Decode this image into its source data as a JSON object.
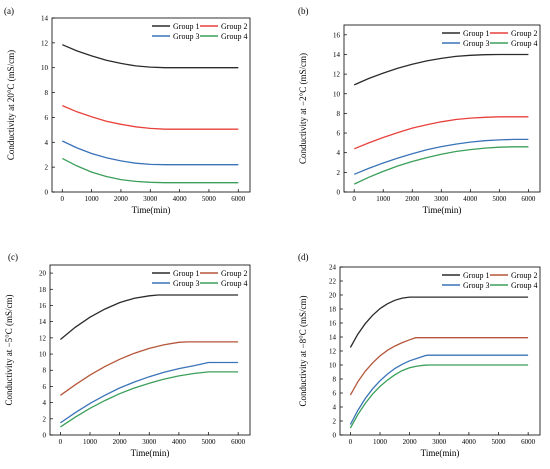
{
  "chart_data": [
    {
      "panel": "(a)",
      "type": "line",
      "xlabel": "Time(min)",
      "ylabel": "Conductivity at 20°C (mS/cm)",
      "xlim": [
        -350,
        6400
      ],
      "ylim": [
        0,
        14
      ],
      "xticks": [
        0,
        1000,
        2000,
        3000,
        4000,
        5000,
        6000
      ],
      "yticks": [
        0,
        2,
        4,
        6,
        8,
        10,
        12,
        14
      ],
      "legend_position": "top-right",
      "legend_columns": 2,
      "grid": false,
      "series": [
        {
          "name": "Group 1",
          "color": "#2b2b2b",
          "x": [
            0,
            500,
            1000,
            1500,
            2000,
            2500,
            3000,
            3500,
            3600,
            4000,
            5000,
            6000
          ],
          "values": [
            11.85,
            11.35,
            10.95,
            10.6,
            10.35,
            10.15,
            10.05,
            10.0,
            10.0,
            10.0,
            10.0,
            10.0
          ]
        },
        {
          "name": "Group 2",
          "color": "#e8413c",
          "x": [
            0,
            500,
            1000,
            1500,
            2000,
            2500,
            3000,
            3500,
            3600,
            4000,
            5000,
            6000
          ],
          "values": [
            6.95,
            6.45,
            6.05,
            5.7,
            5.45,
            5.25,
            5.12,
            5.05,
            5.05,
            5.05,
            5.05,
            5.05
          ]
        },
        {
          "name": "Group 3",
          "color": "#3a73b8",
          "x": [
            0,
            500,
            1000,
            1500,
            2000,
            2500,
            3000,
            3500,
            3600,
            4000,
            5000,
            6000
          ],
          "values": [
            4.1,
            3.55,
            3.1,
            2.75,
            2.5,
            2.32,
            2.22,
            2.2,
            2.2,
            2.2,
            2.2,
            2.2
          ]
        },
        {
          "name": "Group 4",
          "color": "#3b9f5a",
          "x": [
            0,
            500,
            1000,
            1500,
            2000,
            2500,
            3000,
            3500,
            3600,
            4000,
            5000,
            6000
          ],
          "values": [
            2.7,
            2.1,
            1.6,
            1.25,
            1.0,
            0.85,
            0.78,
            0.75,
            0.75,
            0.75,
            0.75,
            0.75
          ]
        }
      ]
    },
    {
      "panel": "(b)",
      "type": "line",
      "xlabel": "Time(min)",
      "ylabel": "Conductivity at −2°C (mS/cm)",
      "xlim": [
        -350,
        6400
      ],
      "ylim": [
        0,
        17
      ],
      "xticks": [
        0,
        1000,
        2000,
        3000,
        4000,
        5000,
        6000
      ],
      "yticks": [
        0,
        2,
        4,
        6,
        8,
        10,
        12,
        14,
        16
      ],
      "legend_position": "top-right",
      "legend_columns": 2,
      "grid": false,
      "series": [
        {
          "name": "Group 1",
          "color": "#2b2b2b",
          "x": [
            0,
            500,
            1000,
            1500,
            2000,
            2500,
            3000,
            3500,
            4000,
            4500,
            5000,
            5500,
            6000
          ],
          "values": [
            10.9,
            11.55,
            12.1,
            12.6,
            13.0,
            13.35,
            13.6,
            13.8,
            13.92,
            13.98,
            14.0,
            14.0,
            14.0
          ]
        },
        {
          "name": "Group 2",
          "color": "#e8413c",
          "x": [
            0,
            500,
            1000,
            1500,
            2000,
            2500,
            3000,
            3500,
            4000,
            4500,
            5000,
            5500,
            6000
          ],
          "values": [
            4.4,
            5.0,
            5.55,
            6.05,
            6.5,
            6.85,
            7.15,
            7.38,
            7.52,
            7.6,
            7.65,
            7.65,
            7.65
          ]
        },
        {
          "name": "Group 3",
          "color": "#3a73b8",
          "x": [
            0,
            500,
            1000,
            1500,
            2000,
            2500,
            3000,
            3500,
            4000,
            4500,
            5000,
            5500,
            6000
          ],
          "values": [
            1.8,
            2.4,
            2.95,
            3.45,
            3.9,
            4.3,
            4.62,
            4.88,
            5.08,
            5.22,
            5.3,
            5.35,
            5.35
          ]
        },
        {
          "name": "Group 4",
          "color": "#3b9f5a",
          "x": [
            0,
            500,
            1000,
            1500,
            2000,
            2500,
            3000,
            3500,
            4000,
            4500,
            5000,
            5500,
            6000
          ],
          "values": [
            0.8,
            1.5,
            2.1,
            2.65,
            3.1,
            3.5,
            3.85,
            4.12,
            4.32,
            4.47,
            4.56,
            4.6,
            4.6
          ]
        }
      ]
    },
    {
      "panel": "(c)",
      "type": "line",
      "xlabel": "Time(min)",
      "ylabel": "Conductivity at −5°C (mS/cm)",
      "xlim": [
        -350,
        6400
      ],
      "ylim": [
        0,
        21
      ],
      "xticks": [
        0,
        1000,
        2000,
        3000,
        4000,
        5000,
        6000
      ],
      "yticks": [
        0,
        2,
        4,
        6,
        8,
        10,
        12,
        14,
        16,
        18,
        20
      ],
      "legend_position": "top-right",
      "legend_columns": 2,
      "grid": false,
      "series": [
        {
          "name": "Group 1",
          "color": "#2b2b2b",
          "x": [
            0,
            500,
            1000,
            1500,
            2000,
            2500,
            3000,
            3300,
            3500,
            4000,
            5000,
            6000
          ],
          "values": [
            11.8,
            13.3,
            14.55,
            15.55,
            16.35,
            16.9,
            17.2,
            17.3,
            17.3,
            17.3,
            17.3,
            17.3
          ]
        },
        {
          "name": "Group 2",
          "color": "#b5563a",
          "x": [
            0,
            500,
            1000,
            1500,
            2000,
            2500,
            3000,
            3500,
            4000,
            4300,
            5000,
            6000
          ],
          "values": [
            4.9,
            6.2,
            7.4,
            8.45,
            9.35,
            10.1,
            10.7,
            11.15,
            11.45,
            11.5,
            11.5,
            11.5
          ]
        },
        {
          "name": "Group 3",
          "color": "#3a73b8",
          "x": [
            0,
            500,
            1000,
            1500,
            2000,
            2500,
            3000,
            3500,
            4000,
            4500,
            5000,
            6000
          ],
          "values": [
            1.5,
            2.75,
            3.9,
            4.9,
            5.8,
            6.55,
            7.2,
            7.75,
            8.2,
            8.55,
            8.95,
            8.95
          ]
        },
        {
          "name": "Group 4",
          "color": "#3b9f5a",
          "x": [
            0,
            500,
            1000,
            1500,
            2000,
            2500,
            3000,
            3500,
            4000,
            4500,
            5000,
            6000
          ],
          "values": [
            1.0,
            2.2,
            3.3,
            4.25,
            5.1,
            5.8,
            6.4,
            6.9,
            7.3,
            7.6,
            7.8,
            7.8
          ]
        }
      ]
    },
    {
      "panel": "(d)",
      "type": "line",
      "xlabel": "Time(min)",
      "ylabel": "Conductivity at −8°C (mS/cm)",
      "xlim": [
        -350,
        6400
      ],
      "ylim": [
        0,
        24
      ],
      "xticks": [
        0,
        1000,
        2000,
        3000,
        4000,
        5000,
        6000
      ],
      "yticks": [
        0,
        2,
        4,
        6,
        8,
        10,
        12,
        14,
        16,
        18,
        20,
        22,
        24
      ],
      "legend_position": "top-right",
      "legend_columns": 2,
      "grid": false,
      "series": [
        {
          "name": "Group 1",
          "color": "#2b2b2b",
          "x": [
            0,
            250,
            500,
            750,
            1000,
            1250,
            1500,
            1750,
            2000,
            3000,
            4000,
            5000,
            6000
          ],
          "values": [
            12.5,
            14.4,
            15.9,
            17.1,
            18.05,
            18.75,
            19.25,
            19.55,
            19.7,
            19.7,
            19.7,
            19.7,
            19.7
          ]
        },
        {
          "name": "Group 2",
          "color": "#b5563a",
          "x": [
            0,
            250,
            500,
            750,
            1000,
            1250,
            1500,
            1750,
            2000,
            2200,
            3000,
            4000,
            5000,
            6000
          ],
          "values": [
            5.7,
            7.6,
            9.1,
            10.3,
            11.3,
            12.1,
            12.7,
            13.2,
            13.6,
            13.9,
            13.9,
            13.9,
            13.9,
            13.9
          ]
        },
        {
          "name": "Group 3",
          "color": "#3a73b8",
          "x": [
            0,
            250,
            500,
            750,
            1000,
            1250,
            1500,
            1750,
            2000,
            2250,
            2500,
            2600,
            3000,
            4000,
            5000,
            6000
          ],
          "values": [
            1.5,
            3.5,
            5.2,
            6.6,
            7.75,
            8.7,
            9.5,
            10.1,
            10.6,
            10.95,
            11.3,
            11.4,
            11.4,
            11.4,
            11.4,
            11.4
          ]
        },
        {
          "name": "Group 4",
          "color": "#3b9f5a",
          "x": [
            0,
            250,
            500,
            750,
            1000,
            1250,
            1500,
            1750,
            2000,
            2250,
            2500,
            2700,
            3000,
            4000,
            5000,
            6000
          ],
          "values": [
            1.0,
            2.9,
            4.5,
            5.85,
            6.95,
            7.85,
            8.6,
            9.2,
            9.6,
            9.85,
            9.97,
            10.0,
            10.0,
            10.0,
            10.0,
            10.0
          ]
        }
      ]
    }
  ]
}
